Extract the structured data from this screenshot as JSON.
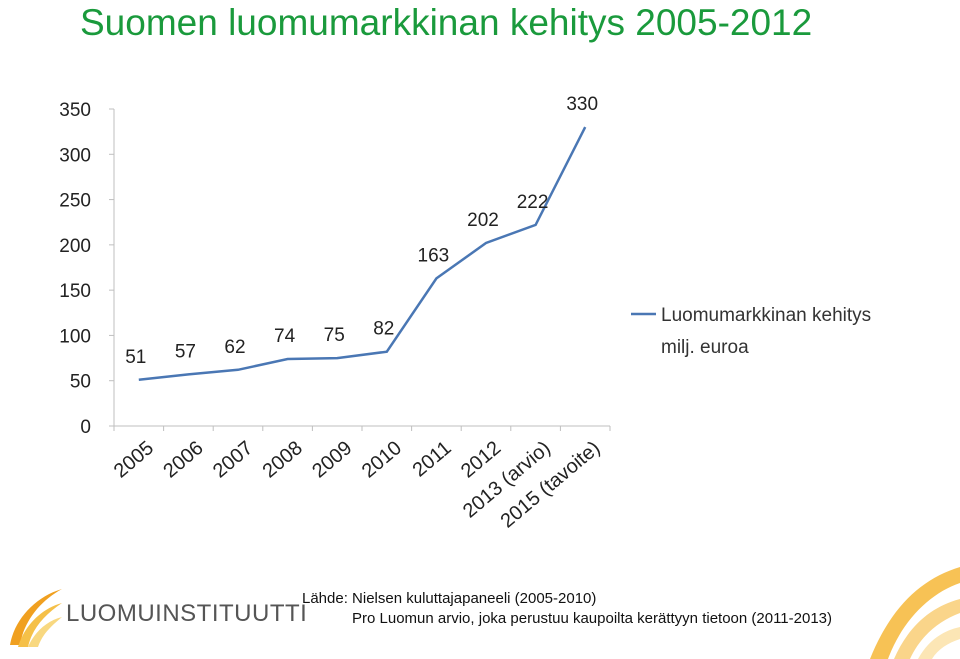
{
  "page": {
    "title": "Suomen luomumarkkinan kehitys 2005-2012"
  },
  "chart_data": {
    "type": "line",
    "categories": [
      "2005",
      "2006",
      "2007",
      "2008",
      "2009",
      "2010",
      "2011",
      "2012",
      "2013 (arvio)",
      "2015 (tavoite)"
    ],
    "series": [
      {
        "name": "Luomumarkkinan kehitys milj. euroa",
        "values": [
          51,
          57,
          62,
          74,
          75,
          82,
          163,
          202,
          222,
          330
        ],
        "color": "#4a77b4"
      }
    ],
    "ylim": [
      0,
      350
    ],
    "yticks": [
      0,
      50,
      100,
      150,
      200,
      250,
      300,
      350
    ],
    "grid": false,
    "legend_position": "right",
    "legend_lines": [
      "Luomumarkkinan kehitys",
      "milj. euroa"
    ]
  },
  "source": {
    "line1": "Lähde: Nielsen kuluttajapaneeli (2005-2010)",
    "line2": "Pro Luomun arvio, joka perustuu kaupoilta kerättyyn tietoon (2011-2013)"
  },
  "logo": {
    "text": "LUOMUINSTITUUTTI",
    "icon": "leaf-swirl-icon"
  },
  "colors": {
    "title": "#1a9a3c",
    "line": "#4a77b4",
    "logo_orange": "#f0a020"
  }
}
